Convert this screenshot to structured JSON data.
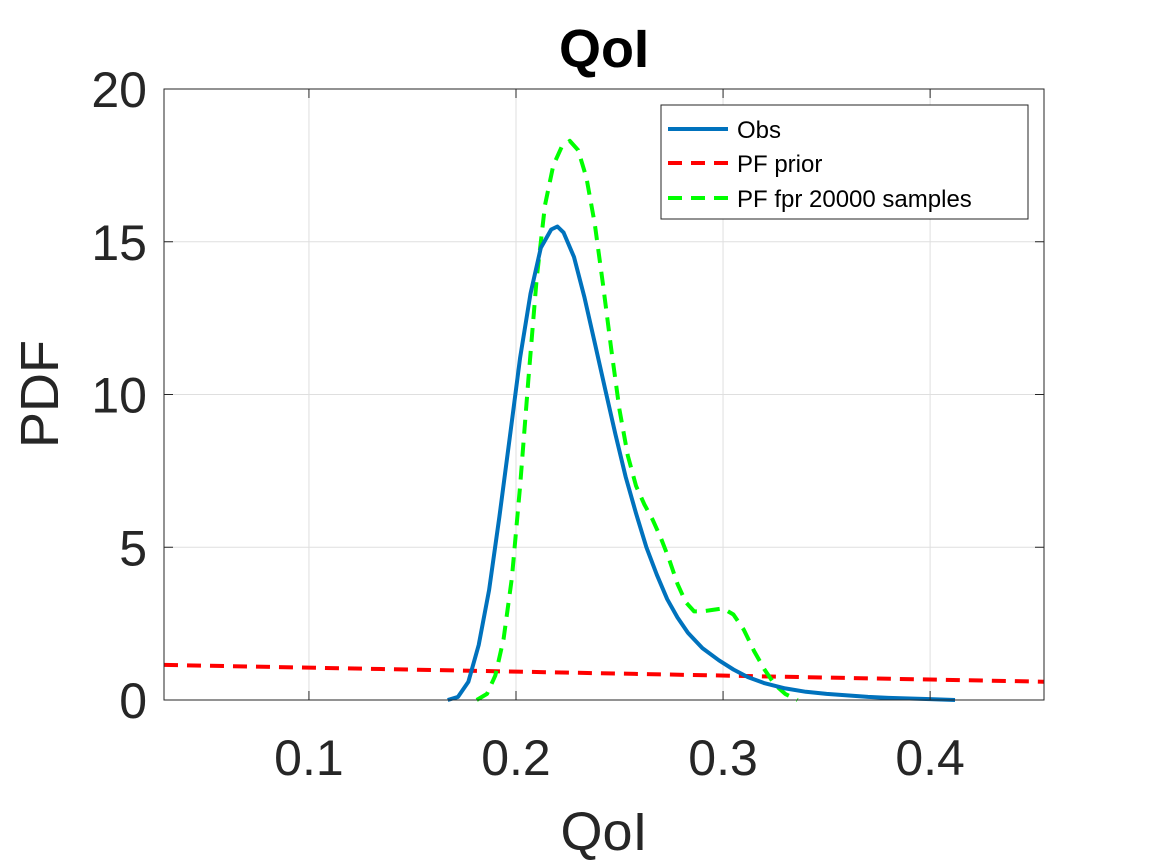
{
  "chart_data": {
    "type": "line",
    "title": "QoI",
    "xlabel": "QoI",
    "ylabel": "PDF",
    "xlim": [
      0.03,
      0.455
    ],
    "ylim": [
      0,
      20
    ],
    "xticks": [
      0.1,
      0.2,
      0.3,
      0.4
    ],
    "xtick_labels": [
      "0.1",
      "0.2",
      "0.3",
      "0.4"
    ],
    "yticks": [
      0,
      5,
      10,
      15,
      20
    ],
    "ytick_labels": [
      "0",
      "5",
      "10",
      "15",
      "20"
    ],
    "grid": true,
    "legend_position": "top-right",
    "series": [
      {
        "name": "Obs",
        "color": "#0072BD",
        "style": "solid",
        "x": [
          0.167,
          0.172,
          0.177,
          0.182,
          0.187,
          0.192,
          0.197,
          0.202,
          0.207,
          0.212,
          0.217,
          0.22,
          0.223,
          0.228,
          0.233,
          0.238,
          0.243,
          0.248,
          0.253,
          0.258,
          0.263,
          0.268,
          0.273,
          0.278,
          0.283,
          0.29,
          0.298,
          0.305,
          0.312,
          0.32,
          0.33,
          0.34,
          0.35,
          0.36,
          0.37,
          0.38,
          0.39,
          0.4,
          0.412
        ],
        "y": [
          0.0,
          0.1,
          0.6,
          1.8,
          3.6,
          6.0,
          8.6,
          11.2,
          13.3,
          14.8,
          15.4,
          15.5,
          15.3,
          14.5,
          13.2,
          11.7,
          10.2,
          8.7,
          7.3,
          6.1,
          5.0,
          4.1,
          3.3,
          2.7,
          2.2,
          1.7,
          1.3,
          1.0,
          0.75,
          0.55,
          0.38,
          0.27,
          0.2,
          0.15,
          0.1,
          0.07,
          0.05,
          0.03,
          0.0
        ]
      },
      {
        "name": "PF prior",
        "color": "#FF0000",
        "style": "dashed",
        "x": [
          0.03,
          0.455
        ],
        "y": [
          1.15,
          0.6
        ]
      },
      {
        "name": "PF fpr 20000 samples",
        "color": "#00FF00",
        "style": "dashed",
        "x": [
          0.181,
          0.186,
          0.19,
          0.194,
          0.198,
          0.202,
          0.206,
          0.21,
          0.214,
          0.218,
          0.222,
          0.226,
          0.23,
          0.234,
          0.238,
          0.242,
          0.246,
          0.25,
          0.254,
          0.258,
          0.262,
          0.266,
          0.27,
          0.274,
          0.278,
          0.282,
          0.286,
          0.29,
          0.295,
          0.3,
          0.305,
          0.31,
          0.315,
          0.32,
          0.325,
          0.33,
          0.336
        ],
        "y": [
          0.0,
          0.2,
          0.8,
          2.0,
          4.0,
          7.0,
          10.5,
          13.8,
          16.2,
          17.5,
          18.1,
          18.3,
          18.0,
          17.1,
          15.6,
          13.6,
          11.5,
          9.5,
          8.0,
          7.0,
          6.4,
          5.9,
          5.3,
          4.6,
          3.8,
          3.2,
          2.9,
          2.9,
          2.95,
          3.0,
          2.8,
          2.3,
          1.6,
          1.0,
          0.5,
          0.2,
          0.0
        ]
      }
    ]
  }
}
